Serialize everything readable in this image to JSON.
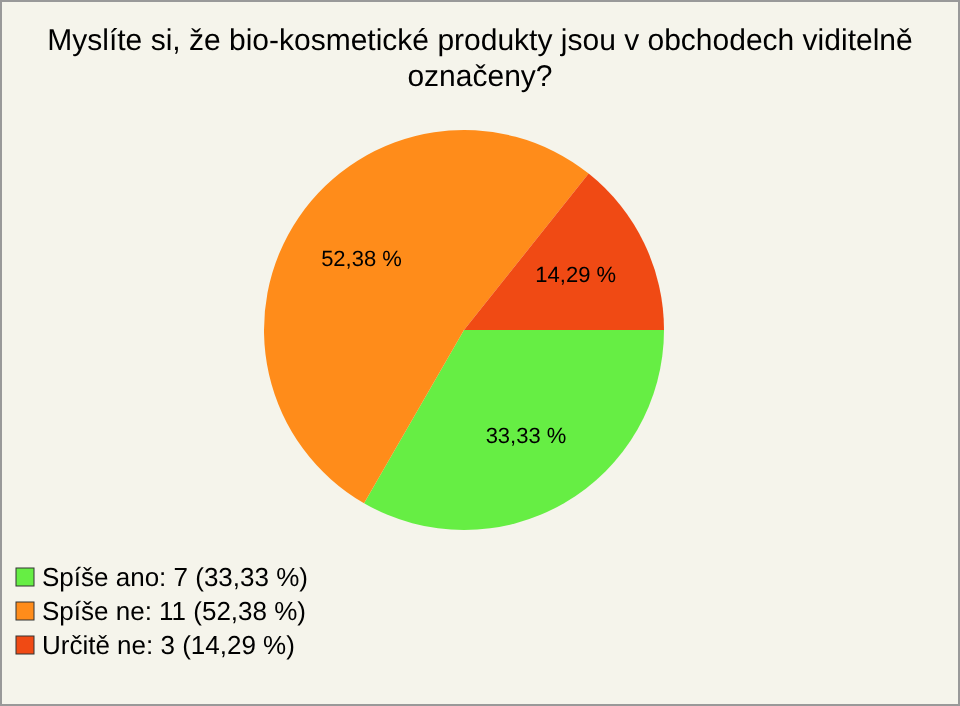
{
  "chart_data": {
    "type": "pie",
    "title": "Myslíte si, že bio-kosmetické produkty jsou v obchodech viditelně označeny?",
    "categories": [
      "Spíše ano: 7 (33,33 %)",
      "Spíše ne: 11 (52,38 %)",
      "Určitě ne: 3 (14,29 %)"
    ],
    "values": [
      33.33,
      52.38,
      14.29
    ],
    "value_labels": [
      "33,33 %",
      "52,38 %",
      "14,29 %"
    ],
    "colors": [
      "#66ee44",
      "#ff8c1a",
      "#f04a14"
    ],
    "legend": "bottom left"
  }
}
